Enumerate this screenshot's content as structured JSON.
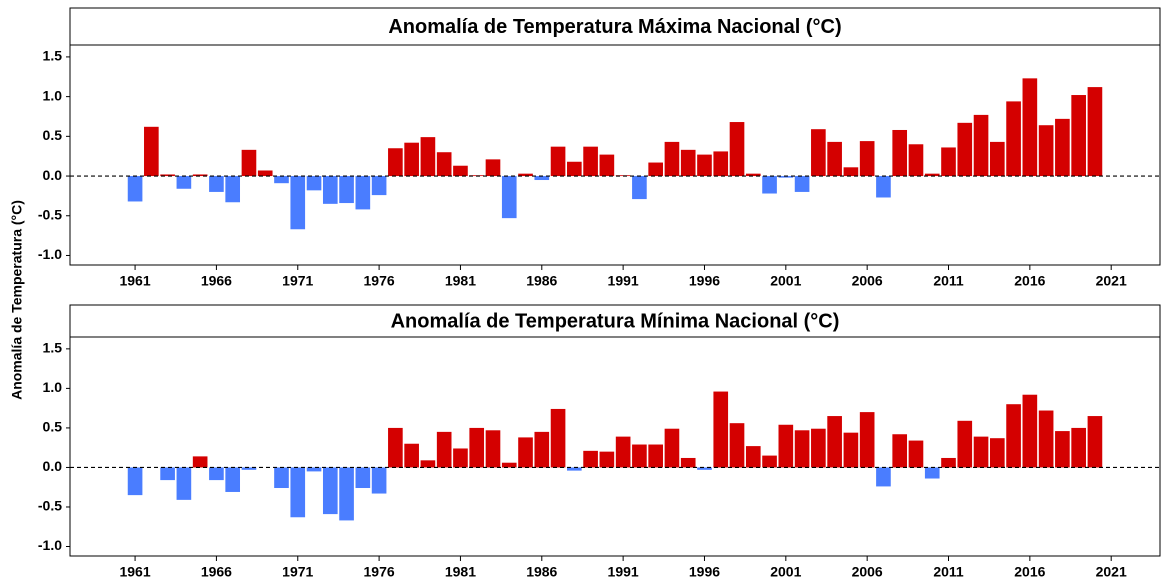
{
  "ylabel": "Anomalía de Temperatura (°C)",
  "chart_data": [
    {
      "type": "bar",
      "title": "Anomalía de Temperatura Máxima Nacional (°C)",
      "x": [
        1961,
        1962,
        1963,
        1964,
        1965,
        1966,
        1967,
        1968,
        1969,
        1970,
        1971,
        1972,
        1973,
        1974,
        1975,
        1976,
        1977,
        1978,
        1979,
        1980,
        1981,
        1982,
        1983,
        1984,
        1985,
        1986,
        1987,
        1988,
        1989,
        1990,
        1991,
        1992,
        1993,
        1994,
        1995,
        1996,
        1997,
        1998,
        1999,
        2000,
        2001,
        2002,
        2003,
        2004,
        2005,
        2006,
        2007,
        2008,
        2009,
        2010,
        2011,
        2012,
        2013,
        2014,
        2015,
        2016,
        2017,
        2018,
        2019,
        2020
      ],
      "values": [
        -0.32,
        0.62,
        0.02,
        -0.16,
        0.02,
        -0.2,
        -0.33,
        0.33,
        0.07,
        -0.09,
        -0.67,
        -0.18,
        -0.35,
        -0.34,
        -0.42,
        -0.24,
        0.35,
        0.42,
        0.49,
        0.3,
        0.13,
        0.01,
        0.21,
        -0.53,
        0.03,
        -0.05,
        0.37,
        0.18,
        0.37,
        0.27,
        0.01,
        -0.29,
        0.17,
        0.43,
        0.33,
        0.27,
        0.31,
        0.68,
        0.03,
        -0.22,
        -0.02,
        -0.2,
        0.59,
        0.43,
        0.11,
        0.44,
        -0.27,
        0.58,
        0.4,
        0.03,
        0.36,
        0.67,
        0.77,
        0.43,
        0.94,
        1.23,
        0.64,
        0.72,
        1.02,
        1.12
      ],
      "positive_color": "#d40000",
      "negative_color": "#4a7dff",
      "xlim": [
        1957,
        2024
      ],
      "xticks": [
        1961,
        1966,
        1971,
        1976,
        1981,
        1986,
        1991,
        1996,
        2001,
        2006,
        2011,
        2016,
        2021
      ],
      "ylim": [
        -1.12,
        1.65
      ],
      "yticks": [
        {
          "value": -1,
          "label": "-1.0"
        },
        -0.5,
        {
          "value": 0,
          "label": "0.0"
        },
        0.5,
        {
          "value": 1,
          "label": "1.0"
        },
        1.5
      ],
      "hline": 0
    },
    {
      "type": "bar",
      "title": "Anomalía de Temperatura Mínima Nacional (°C)",
      "x": [
        1961,
        1962,
        1963,
        1964,
        1965,
        1966,
        1967,
        1968,
        1969,
        1970,
        1971,
        1972,
        1973,
        1974,
        1975,
        1976,
        1977,
        1978,
        1979,
        1980,
        1981,
        1982,
        1983,
        1984,
        1985,
        1986,
        1987,
        1988,
        1989,
        1990,
        1991,
        1992,
        1993,
        1994,
        1995,
        1996,
        1997,
        1998,
        1999,
        2000,
        2001,
        2002,
        2003,
        2004,
        2005,
        2006,
        2007,
        2008,
        2009,
        2010,
        2011,
        2012,
        2013,
        2014,
        2015,
        2016,
        2017,
        2018,
        2019,
        2020
      ],
      "values": [
        -0.35,
        0,
        -0.16,
        -0.41,
        0.14,
        -0.16,
        -0.31,
        -0.03,
        0,
        -0.26,
        -0.63,
        -0.05,
        -0.59,
        -0.67,
        -0.26,
        -0.33,
        0.5,
        0.3,
        0.09,
        0.45,
        0.24,
        0.5,
        0.47,
        0.06,
        0.38,
        0.45,
        0.74,
        -0.04,
        0.21,
        0.2,
        0.39,
        0.29,
        0.29,
        0.49,
        0.12,
        -0.03,
        0.96,
        0.56,
        0.27,
        0.15,
        0.54,
        0.47,
        0.49,
        0.65,
        0.44,
        0.7,
        -0.24,
        0.42,
        0.34,
        -0.14,
        0.12,
        0.59,
        0.39,
        0.37,
        0.8,
        0.92,
        0.72,
        0.46,
        0.5,
        0.65
      ],
      "positive_color": "#d40000",
      "negative_color": "#4a7dff",
      "xlim": [
        1957,
        2024
      ],
      "xticks": [
        1961,
        1966,
        1971,
        1976,
        1981,
        1986,
        1991,
        1996,
        2001,
        2006,
        2011,
        2016,
        2021
      ],
      "ylim": [
        -1.12,
        1.65
      ],
      "yticks": [
        {
          "value": -1,
          "label": "-1.0"
        },
        -0.5,
        {
          "value": 0,
          "label": "0.0"
        },
        0.5,
        {
          "value": 1,
          "label": "1.0"
        },
        1.5
      ],
      "hline": 0
    }
  ]
}
